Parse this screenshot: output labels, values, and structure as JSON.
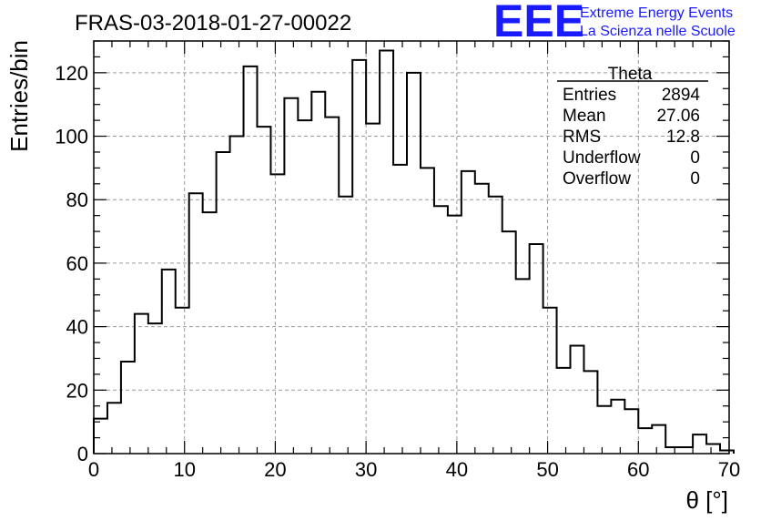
{
  "logo": {
    "mark": "EEE",
    "line1": "Extreme Energy Events",
    "line2": "La Scienza nelle Scuole",
    "color": "#1a1aff"
  },
  "stats_box": {
    "title": "Theta",
    "rows": [
      {
        "label": "Entries",
        "value": "2894"
      },
      {
        "label": "Mean",
        "value": "27.06"
      },
      {
        "label": "RMS",
        "value": "12.8"
      },
      {
        "label": "Underflow",
        "value": "0"
      },
      {
        "label": "Overflow",
        "value": "0"
      }
    ]
  },
  "chart_data": {
    "type": "bar",
    "style": "step-histogram",
    "title": "FRAS-03-2018-01-27-00022",
    "xlabel": "θ [°]",
    "ylabel": "Entries/bin",
    "xlim": [
      0,
      70
    ],
    "ylim": [
      0,
      130
    ],
    "grid": true,
    "bin_width": 1.5,
    "x_ticks": [
      0,
      10,
      20,
      30,
      40,
      50,
      60,
      70
    ],
    "y_ticks": [
      0,
      20,
      40,
      60,
      80,
      100,
      120
    ],
    "values": [
      11,
      16,
      29,
      44,
      41,
      58,
      46,
      82,
      76,
      95,
      100,
      122,
      103,
      88,
      112,
      105,
      114,
      106,
      81,
      124,
      104,
      127,
      91,
      120,
      90,
      78,
      75,
      89,
      85,
      81,
      70,
      55,
      66,
      46,
      27,
      34,
      26,
      15,
      17,
      14,
      8,
      9,
      2,
      2,
      6,
      3,
      1
    ]
  }
}
